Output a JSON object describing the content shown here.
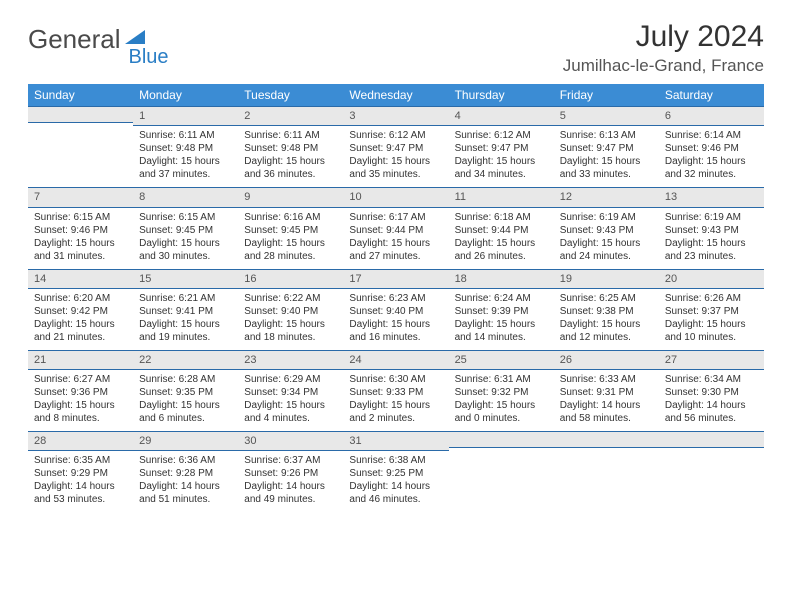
{
  "logo": {
    "part1": "General",
    "part2": "Blue"
  },
  "title": "July 2024",
  "location": "Jumilhac-le-Grand, France",
  "weekdays": [
    "Sunday",
    "Monday",
    "Tuesday",
    "Wednesday",
    "Thursday",
    "Friday",
    "Saturday"
  ],
  "colors": {
    "header_bg": "#3b8cd4",
    "header_text": "#ffffff",
    "daynum_bg": "#e8e8e8",
    "border": "#2a6aa8",
    "logo_gray": "#4a4a4a",
    "logo_blue": "#2a7ec5"
  },
  "weeks": [
    [
      {
        "n": "",
        "sunrise": "",
        "sunset": "",
        "daylight": ""
      },
      {
        "n": "1",
        "sunrise": "Sunrise: 6:11 AM",
        "sunset": "Sunset: 9:48 PM",
        "daylight": "Daylight: 15 hours and 37 minutes."
      },
      {
        "n": "2",
        "sunrise": "Sunrise: 6:11 AM",
        "sunset": "Sunset: 9:48 PM",
        "daylight": "Daylight: 15 hours and 36 minutes."
      },
      {
        "n": "3",
        "sunrise": "Sunrise: 6:12 AM",
        "sunset": "Sunset: 9:47 PM",
        "daylight": "Daylight: 15 hours and 35 minutes."
      },
      {
        "n": "4",
        "sunrise": "Sunrise: 6:12 AM",
        "sunset": "Sunset: 9:47 PM",
        "daylight": "Daylight: 15 hours and 34 minutes."
      },
      {
        "n": "5",
        "sunrise": "Sunrise: 6:13 AM",
        "sunset": "Sunset: 9:47 PM",
        "daylight": "Daylight: 15 hours and 33 minutes."
      },
      {
        "n": "6",
        "sunrise": "Sunrise: 6:14 AM",
        "sunset": "Sunset: 9:46 PM",
        "daylight": "Daylight: 15 hours and 32 minutes."
      }
    ],
    [
      {
        "n": "7",
        "sunrise": "Sunrise: 6:15 AM",
        "sunset": "Sunset: 9:46 PM",
        "daylight": "Daylight: 15 hours and 31 minutes."
      },
      {
        "n": "8",
        "sunrise": "Sunrise: 6:15 AM",
        "sunset": "Sunset: 9:45 PM",
        "daylight": "Daylight: 15 hours and 30 minutes."
      },
      {
        "n": "9",
        "sunrise": "Sunrise: 6:16 AM",
        "sunset": "Sunset: 9:45 PM",
        "daylight": "Daylight: 15 hours and 28 minutes."
      },
      {
        "n": "10",
        "sunrise": "Sunrise: 6:17 AM",
        "sunset": "Sunset: 9:44 PM",
        "daylight": "Daylight: 15 hours and 27 minutes."
      },
      {
        "n": "11",
        "sunrise": "Sunrise: 6:18 AM",
        "sunset": "Sunset: 9:44 PM",
        "daylight": "Daylight: 15 hours and 26 minutes."
      },
      {
        "n": "12",
        "sunrise": "Sunrise: 6:19 AM",
        "sunset": "Sunset: 9:43 PM",
        "daylight": "Daylight: 15 hours and 24 minutes."
      },
      {
        "n": "13",
        "sunrise": "Sunrise: 6:19 AM",
        "sunset": "Sunset: 9:43 PM",
        "daylight": "Daylight: 15 hours and 23 minutes."
      }
    ],
    [
      {
        "n": "14",
        "sunrise": "Sunrise: 6:20 AM",
        "sunset": "Sunset: 9:42 PM",
        "daylight": "Daylight: 15 hours and 21 minutes."
      },
      {
        "n": "15",
        "sunrise": "Sunrise: 6:21 AM",
        "sunset": "Sunset: 9:41 PM",
        "daylight": "Daylight: 15 hours and 19 minutes."
      },
      {
        "n": "16",
        "sunrise": "Sunrise: 6:22 AM",
        "sunset": "Sunset: 9:40 PM",
        "daylight": "Daylight: 15 hours and 18 minutes."
      },
      {
        "n": "17",
        "sunrise": "Sunrise: 6:23 AM",
        "sunset": "Sunset: 9:40 PM",
        "daylight": "Daylight: 15 hours and 16 minutes."
      },
      {
        "n": "18",
        "sunrise": "Sunrise: 6:24 AM",
        "sunset": "Sunset: 9:39 PM",
        "daylight": "Daylight: 15 hours and 14 minutes."
      },
      {
        "n": "19",
        "sunrise": "Sunrise: 6:25 AM",
        "sunset": "Sunset: 9:38 PM",
        "daylight": "Daylight: 15 hours and 12 minutes."
      },
      {
        "n": "20",
        "sunrise": "Sunrise: 6:26 AM",
        "sunset": "Sunset: 9:37 PM",
        "daylight": "Daylight: 15 hours and 10 minutes."
      }
    ],
    [
      {
        "n": "21",
        "sunrise": "Sunrise: 6:27 AM",
        "sunset": "Sunset: 9:36 PM",
        "daylight": "Daylight: 15 hours and 8 minutes."
      },
      {
        "n": "22",
        "sunrise": "Sunrise: 6:28 AM",
        "sunset": "Sunset: 9:35 PM",
        "daylight": "Daylight: 15 hours and 6 minutes."
      },
      {
        "n": "23",
        "sunrise": "Sunrise: 6:29 AM",
        "sunset": "Sunset: 9:34 PM",
        "daylight": "Daylight: 15 hours and 4 minutes."
      },
      {
        "n": "24",
        "sunrise": "Sunrise: 6:30 AM",
        "sunset": "Sunset: 9:33 PM",
        "daylight": "Daylight: 15 hours and 2 minutes."
      },
      {
        "n": "25",
        "sunrise": "Sunrise: 6:31 AM",
        "sunset": "Sunset: 9:32 PM",
        "daylight": "Daylight: 15 hours and 0 minutes."
      },
      {
        "n": "26",
        "sunrise": "Sunrise: 6:33 AM",
        "sunset": "Sunset: 9:31 PM",
        "daylight": "Daylight: 14 hours and 58 minutes."
      },
      {
        "n": "27",
        "sunrise": "Sunrise: 6:34 AM",
        "sunset": "Sunset: 9:30 PM",
        "daylight": "Daylight: 14 hours and 56 minutes."
      }
    ],
    [
      {
        "n": "28",
        "sunrise": "Sunrise: 6:35 AM",
        "sunset": "Sunset: 9:29 PM",
        "daylight": "Daylight: 14 hours and 53 minutes."
      },
      {
        "n": "29",
        "sunrise": "Sunrise: 6:36 AM",
        "sunset": "Sunset: 9:28 PM",
        "daylight": "Daylight: 14 hours and 51 minutes."
      },
      {
        "n": "30",
        "sunrise": "Sunrise: 6:37 AM",
        "sunset": "Sunset: 9:26 PM",
        "daylight": "Daylight: 14 hours and 49 minutes."
      },
      {
        "n": "31",
        "sunrise": "Sunrise: 6:38 AM",
        "sunset": "Sunset: 9:25 PM",
        "daylight": "Daylight: 14 hours and 46 minutes."
      },
      {
        "n": "",
        "sunrise": "",
        "sunset": "",
        "daylight": ""
      },
      {
        "n": "",
        "sunrise": "",
        "sunset": "",
        "daylight": ""
      },
      {
        "n": "",
        "sunrise": "",
        "sunset": "",
        "daylight": ""
      }
    ]
  ]
}
